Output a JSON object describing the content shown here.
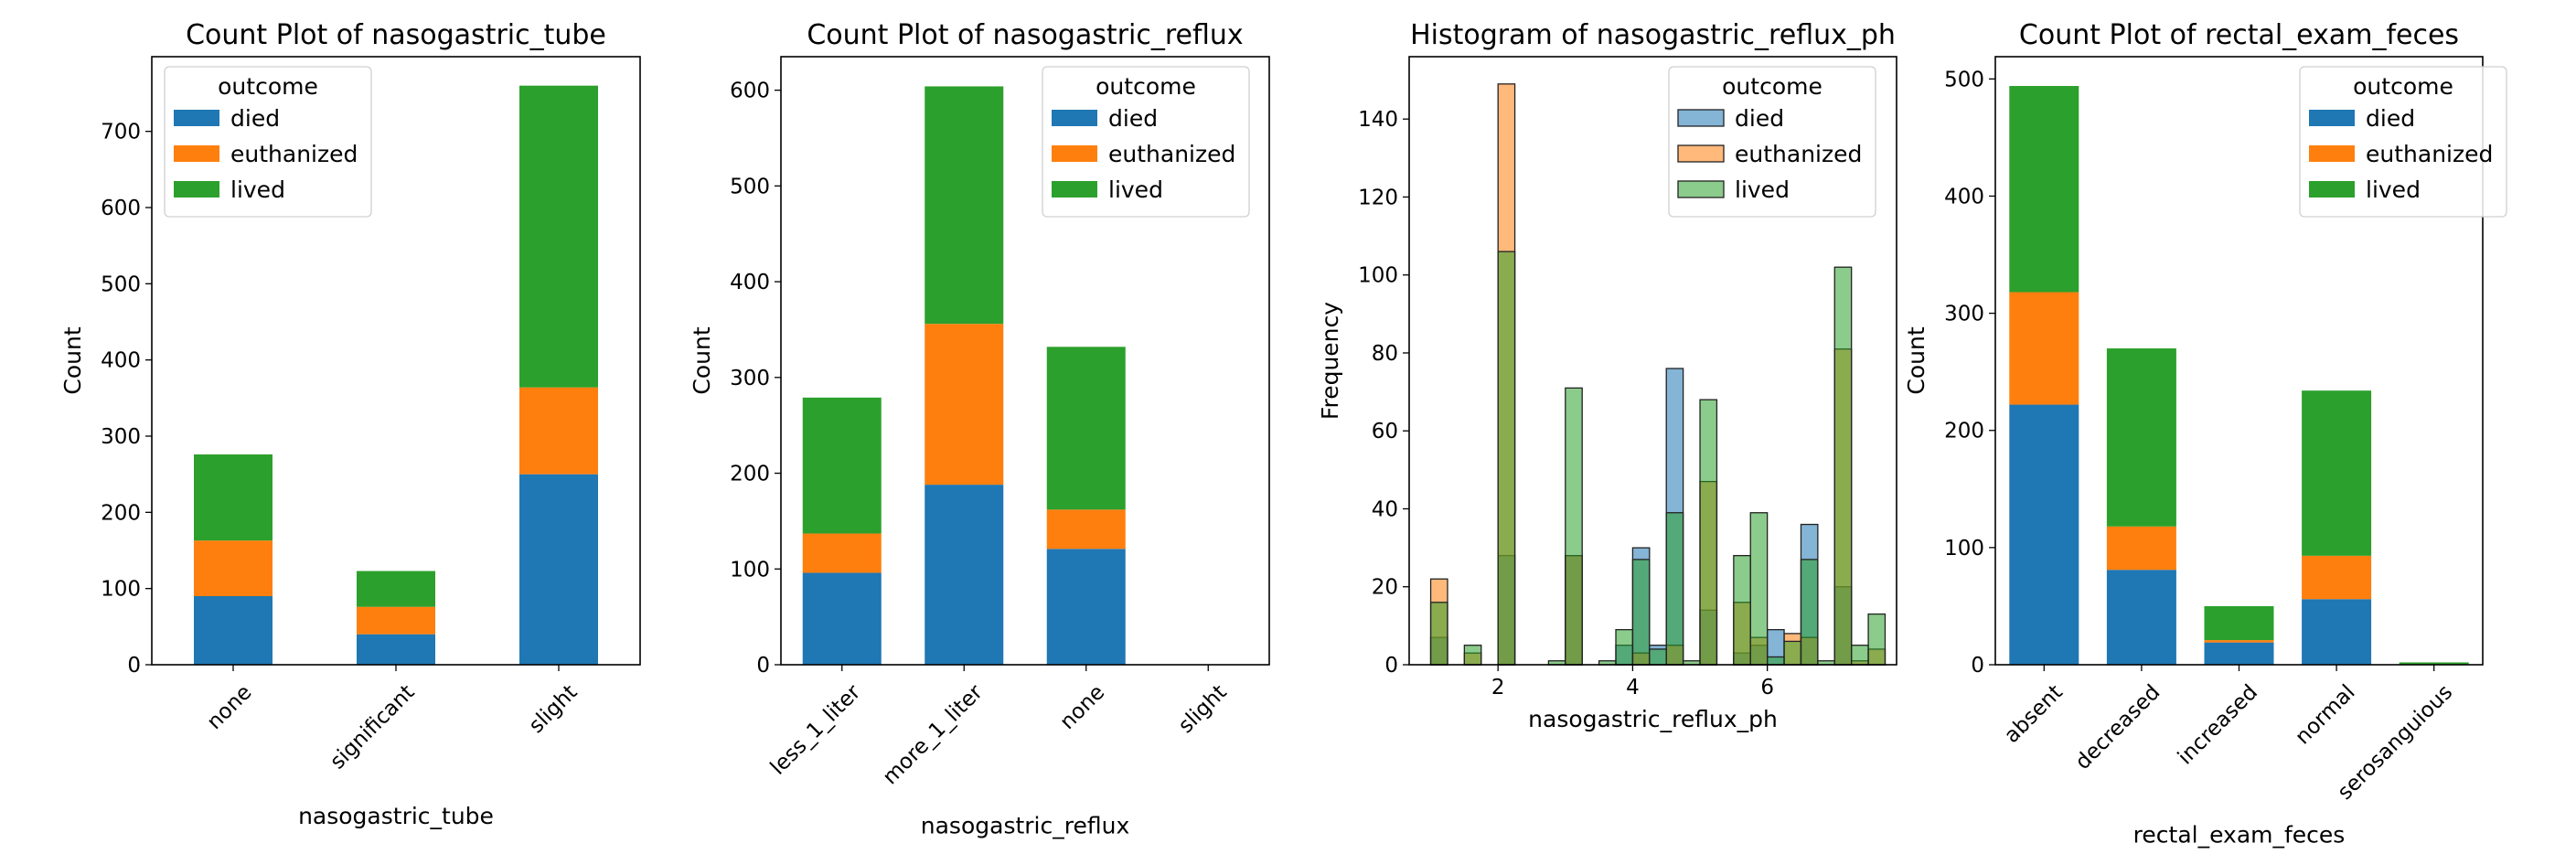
{
  "colors": {
    "died": "#1f77b4",
    "euthanized": "#ff7f0e",
    "lived": "#2ca02c"
  },
  "chart_data": [
    {
      "type": "bar",
      "stacked": true,
      "title": "Count Plot of nasogastric_tube",
      "xlabel": "nasogastric_tube",
      "ylabel": "Count",
      "categories": [
        "none",
        "significant",
        "slight"
      ],
      "series": [
        {
          "name": "died",
          "values": [
            90,
            40,
            250
          ]
        },
        {
          "name": "euthanized",
          "values": [
            73,
            36,
            114
          ]
        },
        {
          "name": "lived",
          "values": [
            113,
            47,
            396
          ]
        }
      ],
      "yticks": [
        0,
        100,
        200,
        300,
        400,
        500,
        600,
        700
      ],
      "ylim": [
        0,
        798
      ],
      "legend": {
        "title": "outcome",
        "position": "upper-left"
      }
    },
    {
      "type": "bar",
      "stacked": true,
      "title": "Count Plot of nasogastric_reflux",
      "xlabel": "nasogastric_reflux",
      "ylabel": "Count",
      "categories": [
        "less_1_liter",
        "more_1_liter",
        "none",
        "slight"
      ],
      "series": [
        {
          "name": "died",
          "values": [
            96,
            188,
            121,
            0
          ]
        },
        {
          "name": "euthanized",
          "values": [
            41,
            168,
            41,
            0
          ]
        },
        {
          "name": "lived",
          "values": [
            142,
            248,
            170,
            0
          ]
        }
      ],
      "yticks": [
        0,
        100,
        200,
        300,
        400,
        500,
        600
      ],
      "ylim": [
        0,
        635
      ],
      "legend": {
        "title": "outcome",
        "position": "upper-right"
      }
    },
    {
      "type": "histogram",
      "title": "Histogram of nasogastric_reflux_ph",
      "xlabel": "nasogastric_reflux_ph",
      "ylabel": "Frequency",
      "bin_width": 0.25,
      "series": [
        {
          "name": "died",
          "bins": [
            [
              1.0,
              7
            ],
            [
              2.0,
              28
            ],
            [
              3.0,
              28
            ],
            [
              3.75,
              5
            ],
            [
              4.0,
              30
            ],
            [
              4.25,
              5
            ],
            [
              4.5,
              76
            ],
            [
              5.0,
              14
            ],
            [
              5.5,
              3
            ],
            [
              5.75,
              5
            ],
            [
              6.0,
              9
            ],
            [
              6.5,
              36
            ],
            [
              7.0,
              20
            ]
          ]
        },
        {
          "name": "euthanized",
          "bins": [
            [
              1.0,
              22
            ],
            [
              1.5,
              3
            ],
            [
              2.0,
              149
            ],
            [
              3.0,
              28
            ],
            [
              4.0,
              3
            ],
            [
              4.5,
              5
            ],
            [
              5.0,
              47
            ],
            [
              5.5,
              16
            ],
            [
              5.75,
              7
            ],
            [
              6.25,
              8
            ],
            [
              6.5,
              7
            ],
            [
              7.0,
              81
            ],
            [
              7.25,
              1
            ],
            [
              7.5,
              4
            ]
          ]
        },
        {
          "name": "lived",
          "bins": [
            [
              1.0,
              16
            ],
            [
              1.5,
              5
            ],
            [
              2.0,
              106
            ],
            [
              2.75,
              1
            ],
            [
              3.0,
              71
            ],
            [
              3.5,
              1
            ],
            [
              3.75,
              9
            ],
            [
              4.0,
              27
            ],
            [
              4.25,
              4
            ],
            [
              4.5,
              39
            ],
            [
              4.75,
              1
            ],
            [
              5.0,
              68
            ],
            [
              5.5,
              28
            ],
            [
              5.75,
              39
            ],
            [
              6.0,
              2
            ],
            [
              6.25,
              6
            ],
            [
              6.5,
              27
            ],
            [
              6.75,
              1
            ],
            [
              7.0,
              102
            ],
            [
              7.25,
              5
            ],
            [
              7.5,
              13
            ]
          ]
        }
      ],
      "xticks": [
        2,
        4,
        6
      ],
      "xlim": [
        0.68,
        7.92
      ],
      "yticks": [
        0,
        20,
        40,
        60,
        80,
        100,
        120,
        140
      ],
      "ylim": [
        0,
        156
      ],
      "legend": {
        "title": "outcome",
        "position": "upper-right"
      }
    },
    {
      "type": "bar",
      "stacked": true,
      "title": "Count Plot of rectal_exam_feces",
      "xlabel": "rectal_exam_feces",
      "ylabel": "Count",
      "categories": [
        "absent",
        "decreased",
        "increased",
        "normal",
        "serosanguious"
      ],
      "series": [
        {
          "name": "died",
          "values": [
            222,
            81,
            19,
            56,
            0
          ]
        },
        {
          "name": "euthanized",
          "values": [
            96,
            37,
            2,
            37,
            0
          ]
        },
        {
          "name": "lived",
          "values": [
            176,
            152,
            29,
            141,
            2
          ]
        }
      ],
      "yticks": [
        0,
        100,
        200,
        300,
        400,
        500
      ],
      "ylim": [
        0,
        519
      ],
      "legend": {
        "title": "outcome",
        "position": "upper-right"
      }
    }
  ]
}
